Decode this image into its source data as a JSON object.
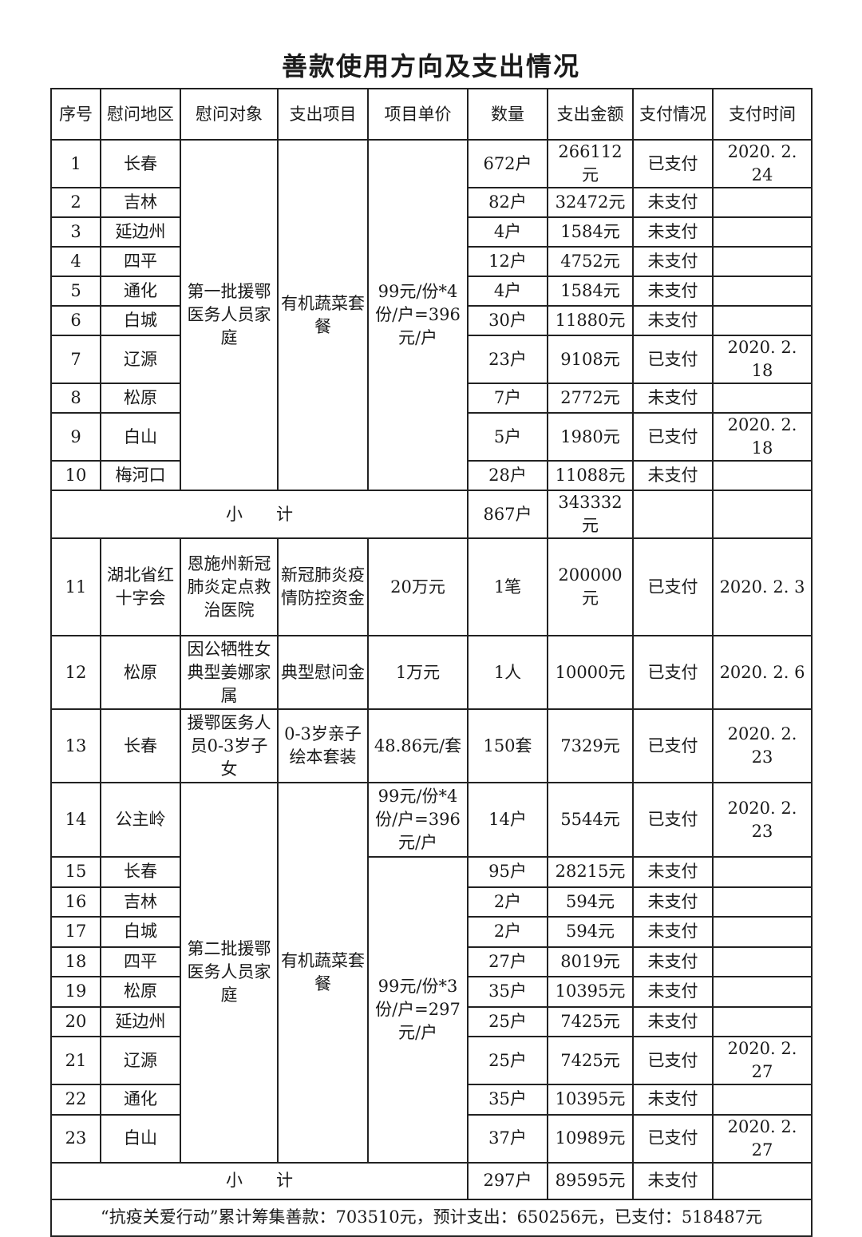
{
  "title": "善款使用方向及支出情况",
  "headers": [
    "序号",
    "慰问地区",
    "慰问对象",
    "支出项目",
    "项目单价",
    "数量",
    "支出金额",
    "支付情况",
    "支付时间"
  ],
  "group1": {
    "target": "第一批援鄂医务人员家庭",
    "item": "有机蔬菜套餐",
    "price": "99元/份*4份/户=396元/户"
  },
  "rows1": [
    {
      "no": "1",
      "region": "长春",
      "count": "672户",
      "amount": "266112元",
      "status": "已支付",
      "date": "2020. 2. 24"
    },
    {
      "no": "2",
      "region": "吉林",
      "count": "82户",
      "amount": "32472元",
      "status": "未支付",
      "date": ""
    },
    {
      "no": "3",
      "region": "延边州",
      "count": "4户",
      "amount": "1584元",
      "status": "未支付",
      "date": ""
    },
    {
      "no": "4",
      "region": "四平",
      "count": "12户",
      "amount": "4752元",
      "status": "未支付",
      "date": ""
    },
    {
      "no": "5",
      "region": "通化",
      "count": "4户",
      "amount": "1584元",
      "status": "未支付",
      "date": ""
    },
    {
      "no": "6",
      "region": "白城",
      "count": "30户",
      "amount": "11880元",
      "status": "未支付",
      "date": ""
    },
    {
      "no": "7",
      "region": "辽源",
      "count": "23户",
      "amount": "9108元",
      "status": "已支付",
      "date": "2020. 2. 18"
    },
    {
      "no": "8",
      "region": "松原",
      "count": "7户",
      "amount": "2772元",
      "status": "未支付",
      "date": ""
    },
    {
      "no": "9",
      "region": "白山",
      "count": "5户",
      "amount": "1980元",
      "status": "已支付",
      "date": "2020. 2. 18"
    },
    {
      "no": "10",
      "region": "梅河口",
      "count": "28户",
      "amount": "11088元",
      "status": "未支付",
      "date": ""
    }
  ],
  "subtotal1": {
    "label": "小　　计",
    "count": "867户",
    "amount": "343332元",
    "status": "",
    "date": ""
  },
  "single_rows": [
    {
      "no": "11",
      "region": "湖北省红十字会",
      "target": "恩施州新冠肺炎定点救治医院",
      "item": "新冠肺炎疫情防控资金",
      "price": "20万元",
      "count": "1笔",
      "amount": "200000元",
      "status": "已支付",
      "date": "2020. 2. 3"
    },
    {
      "no": "12",
      "region": "松原",
      "target": "因公牺牲女典型姜娜家属",
      "item": "典型慰问金",
      "price": "1万元",
      "count": "1人",
      "amount": "10000元",
      "status": "已支付",
      "date": "2020. 2. 6"
    },
    {
      "no": "13",
      "region": "长春",
      "target": "援鄂医务人员0-3岁子女",
      "item": "0-3岁亲子绘本套装",
      "price": "48.86元/套",
      "count": "150套",
      "amount": "7329元",
      "status": "已支付",
      "date": "2020. 2. 23"
    }
  ],
  "group2": {
    "target": "第二批援鄂医务人员家庭",
    "item": "有机蔬菜套餐",
    "price_first": "99元/份*4份/户=396元/户",
    "price_rest": "99元/份*3份/户=297元/户"
  },
  "rows2": [
    {
      "no": "14",
      "region": "公主岭",
      "count": "14户",
      "amount": "5544元",
      "status": "已支付",
      "date": "2020. 2. 23"
    },
    {
      "no": "15",
      "region": "长春",
      "count": "95户",
      "amount": "28215元",
      "status": "未支付",
      "date": ""
    },
    {
      "no": "16",
      "region": "吉林",
      "count": "2户",
      "amount": "594元",
      "status": "未支付",
      "date": ""
    },
    {
      "no": "17",
      "region": "白城",
      "count": "2户",
      "amount": "594元",
      "status": "未支付",
      "date": ""
    },
    {
      "no": "18",
      "region": "四平",
      "count": "27户",
      "amount": "8019元",
      "status": "未支付",
      "date": ""
    },
    {
      "no": "19",
      "region": "松原",
      "count": "35户",
      "amount": "10395元",
      "status": "未支付",
      "date": ""
    },
    {
      "no": "20",
      "region": "延边州",
      "count": "25户",
      "amount": "7425元",
      "status": "未支付",
      "date": ""
    },
    {
      "no": "21",
      "region": "辽源",
      "count": "25户",
      "amount": "7425元",
      "status": "已支付",
      "date": "2020. 2. 27"
    },
    {
      "no": "22",
      "region": "通化",
      "count": "35户",
      "amount": "10395元",
      "status": "未支付",
      "date": ""
    },
    {
      "no": "23",
      "region": "白山",
      "count": "37户",
      "amount": "10989元",
      "status": "已支付",
      "date": "2020. 2. 27"
    }
  ],
  "subtotal2": {
    "label": "小　　计",
    "count": "297户",
    "amount": "89595元",
    "status": "未支付",
    "date": ""
  },
  "footer": "“抗疫关爱行动”累计筹集善款：703510元，预计支出：650256元，已支付：518487元"
}
